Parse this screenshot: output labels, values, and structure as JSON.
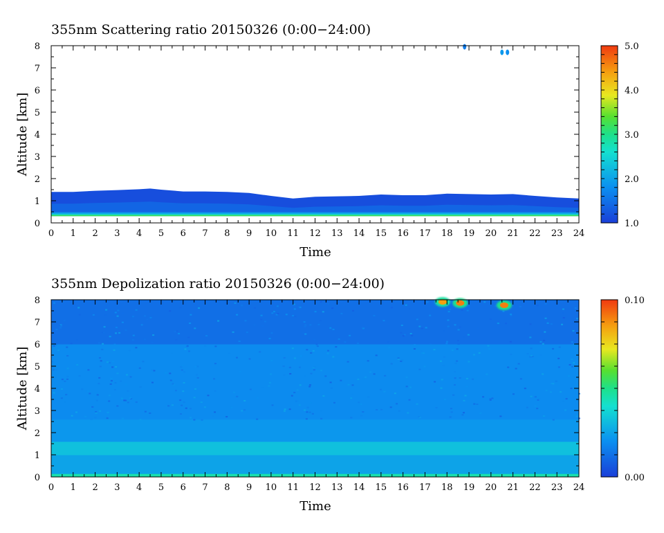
{
  "chart_data": [
    {
      "type": "heatmap",
      "title": "355nm Scattering ratio  20150326 (0:00−24:00)",
      "xlabel": "Time",
      "ylabel": "Altitude [km]",
      "xlim": [
        0,
        24
      ],
      "ylim": [
        0,
        8
      ],
      "x_ticks": [
        "0",
        "1",
        "2",
        "3",
        "4",
        "5",
        "6",
        "7",
        "8",
        "9",
        "10",
        "11",
        "12",
        "13",
        "14",
        "15",
        "16",
        "17",
        "18",
        "19",
        "20",
        "21",
        "22",
        "23",
        "24"
      ],
      "y_ticks": [
        "0",
        "1",
        "2",
        "3",
        "4",
        "5",
        "6",
        "7",
        "8"
      ],
      "colorbar": {
        "min": 1.0,
        "max": 5.0,
        "tick_labels": [
          "5.0",
          "4.0",
          "3.0",
          "2.0",
          "1.0"
        ]
      },
      "layer_top_km": [
        [
          0,
          1.4
        ],
        [
          1,
          1.4
        ],
        [
          2,
          1.45
        ],
        [
          3,
          1.48
        ],
        [
          4,
          1.52
        ],
        [
          4.5,
          1.55
        ],
        [
          5,
          1.5
        ],
        [
          6,
          1.42
        ],
        [
          7,
          1.42
        ],
        [
          8,
          1.4
        ],
        [
          9,
          1.35
        ],
        [
          10,
          1.22
        ],
        [
          11,
          1.1
        ],
        [
          12,
          1.18
        ],
        [
          13,
          1.2
        ],
        [
          14,
          1.22
        ],
        [
          15,
          1.28
        ],
        [
          16,
          1.25
        ],
        [
          17,
          1.25
        ],
        [
          18,
          1.32
        ],
        [
          19,
          1.3
        ],
        [
          20,
          1.28
        ],
        [
          21,
          1.3
        ],
        [
          22,
          1.22
        ],
        [
          23,
          1.15
        ],
        [
          24,
          1.1
        ]
      ],
      "surface_bands_km": [
        {
          "from": 0.3,
          "to": 0.36,
          "value": 3.2
        },
        {
          "from": 0.36,
          "to": 0.42,
          "value": 2.4
        },
        {
          "from": 0.42,
          "to": 0.48,
          "value": 1.9
        }
      ],
      "patches": [
        {
          "time": 18.8,
          "alt": 7.95,
          "value": 1.6
        },
        {
          "time": 20.5,
          "alt": 7.7,
          "value": 1.9
        },
        {
          "time": 20.75,
          "alt": 7.7,
          "value": 1.8
        }
      ]
    },
    {
      "type": "heatmap",
      "title": "355nm Depolization ratio  20150326 (0:00−24:00)",
      "xlabel": "Time",
      "ylabel": "Altitude [km]",
      "xlim": [
        0,
        24
      ],
      "ylim": [
        0,
        8
      ],
      "x_ticks": [
        "0",
        "1",
        "2",
        "3",
        "4",
        "5",
        "6",
        "7",
        "8",
        "9",
        "10",
        "11",
        "12",
        "13",
        "14",
        "15",
        "16",
        "17",
        "18",
        "19",
        "20",
        "21",
        "22",
        "23",
        "24"
      ],
      "y_ticks": [
        "0",
        "1",
        "2",
        "3",
        "4",
        "5",
        "6",
        "7",
        "8"
      ],
      "colorbar": {
        "min": 0.0,
        "max": 0.1,
        "tick_labels": [
          "0.10",
          "0.00"
        ]
      },
      "bands_km": [
        {
          "from": 0.0,
          "to": 0.15,
          "value": 0.045
        },
        {
          "from": 0.15,
          "to": 1.0,
          "value": 0.025
        },
        {
          "from": 1.0,
          "to": 1.6,
          "value": 0.032
        },
        {
          "from": 1.6,
          "to": 2.6,
          "value": 0.022
        },
        {
          "from": 2.6,
          "to": 6.0,
          "value": 0.019
        },
        {
          "from": 6.0,
          "to": 8.0,
          "value": 0.012
        }
      ],
      "cloud_patches": [
        {
          "time": 17.8,
          "alt": 7.9,
          "value": 0.085
        },
        {
          "time": 18.6,
          "alt": 7.85,
          "value": 0.09
        },
        {
          "time": 20.6,
          "alt": 7.75,
          "value": 0.09
        }
      ]
    }
  ]
}
